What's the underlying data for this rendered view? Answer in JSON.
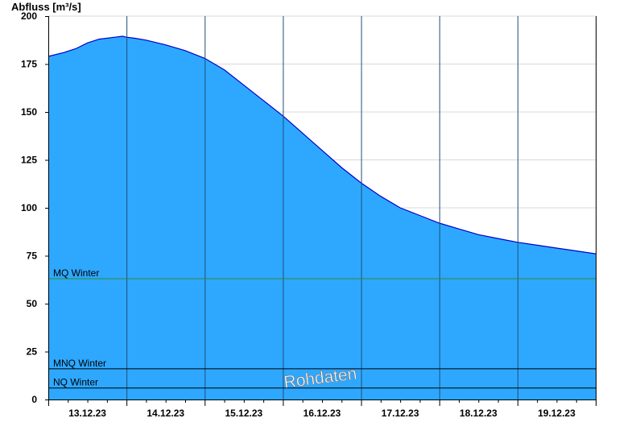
{
  "chart_data": {
    "type": "area",
    "ylabel": "Abfluss [m³/s]",
    "ylim": [
      0,
      200
    ],
    "yticks": [
      0,
      25,
      50,
      75,
      100,
      125,
      150,
      175,
      200
    ],
    "xlabels": [
      "13.12.23",
      "14.12.23",
      "15.12.23",
      "16.12.23",
      "17.12.23",
      "18.12.23",
      "19.12.23"
    ],
    "xrange_days": [
      0,
      7
    ],
    "grid": true,
    "fill_color": "#2ea8ff",
    "line_color": "#0000cc",
    "reference_lines": [
      {
        "label": "MQ Winter",
        "value": 63,
        "color": "#2e8b2e"
      },
      {
        "label": "MNQ Winter",
        "value": 16,
        "color": "#000000"
      },
      {
        "label": "NQ Winter",
        "value": 6,
        "color": "#000000"
      }
    ],
    "watermark": "Rohdaten",
    "series": [
      {
        "x": [
          0,
          0.2,
          0.35,
          0.5,
          0.65,
          0.85,
          0.95,
          1.0,
          1.1,
          1.25,
          1.5,
          1.75,
          2.0,
          2.25,
          2.5,
          2.75,
          3.0,
          3.25,
          3.5,
          3.75,
          4.0,
          4.25,
          4.5,
          4.75,
          5.0,
          5.25,
          5.5,
          5.75,
          6.0,
          6.25,
          6.5,
          6.75,
          7.0
        ],
        "values": [
          179,
          181,
          183,
          186,
          188,
          189,
          189.5,
          189,
          188.5,
          187.5,
          185,
          182,
          178,
          172,
          164,
          156,
          148,
          139,
          130,
          121,
          113,
          106,
          100,
          96,
          92,
          89,
          86,
          84,
          82,
          80.5,
          79,
          77.5,
          76
        ]
      }
    ]
  }
}
